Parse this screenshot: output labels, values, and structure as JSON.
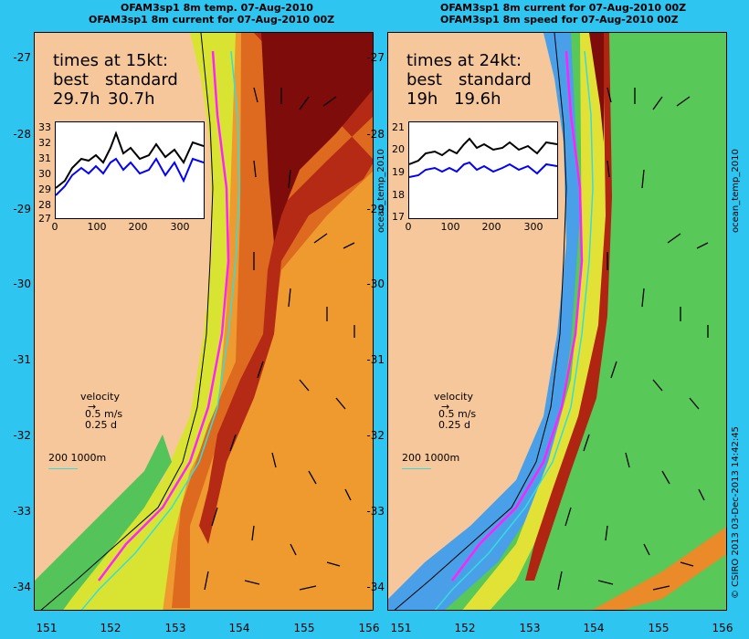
{
  "left": {
    "title1": "OFAM3sp1 8m temp. 07-Aug-2010",
    "title2": "OFAM3sp1 8m current for 07-Aug-2010 00Z",
    "times_heading": "times at 15kt:",
    "col_best": "best",
    "col_standard": "standard",
    "val_best": "29.7h",
    "val_standard": "30.7h",
    "inset_yticks": [
      "33",
      "32",
      "31",
      "30",
      "29",
      "28",
      "27"
    ],
    "inset_xticks": [
      "0",
      "100",
      "200",
      "300"
    ],
    "velocity": "velocity",
    "vel_scale": "0.5 m/s",
    "vel_time": "0.25 d",
    "isobath": "200  1000m",
    "side_label": "ocean_temp_2010"
  },
  "right": {
    "title1": "OFAM3sp1 8m current for 07-Aug-2010 00Z",
    "title2": "OFAM3sp1 8m speed for 07-Aug-2010 00Z",
    "times_heading": "times at 24kt:",
    "col_best": "best",
    "col_standard": "standard",
    "val_best": "19h",
    "val_standard": "19.6h",
    "inset_yticks": [
      "21",
      "20",
      "19",
      "18",
      "17"
    ],
    "inset_xticks": [
      "0",
      "100",
      "200",
      "300"
    ],
    "velocity": "velocity",
    "vel_scale": "0.5 m/s",
    "vel_time": "0.25 d",
    "isobath": "200  1000m",
    "side_label": "ocean_temp_2010",
    "credit": "© CSIRO 2013   03-Dec-2013 14:42:45"
  },
  "y_ticks": [
    "-27",
    "-28",
    "-29",
    "-30",
    "-31",
    "-32",
    "-33",
    "-34"
  ],
  "x_ticks": [
    "151",
    "152",
    "153",
    "154",
    "155",
    "156"
  ],
  "colors": {
    "land": "#f6c79b",
    "background": "#2ec5f0",
    "route_best": "#ff22ff",
    "isobath": "#33dddd",
    "series_standard": "#000000",
    "series_best": "#0000ff"
  }
}
